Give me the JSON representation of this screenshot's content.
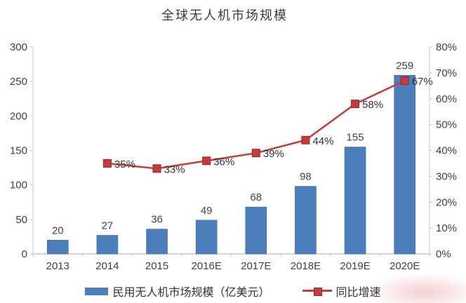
{
  "title": "全球无人机市场规模",
  "chart_data": {
    "type": "bar",
    "subtype": "combo-bar-line-dual-axis",
    "title": "全球无人机市场规模",
    "categories": [
      "2013",
      "2014",
      "2015",
      "2016E",
      "2017E",
      "2018E",
      "2019E",
      "2020E"
    ],
    "series": [
      {
        "name": "民用无人机市场规模（亿美元）",
        "type": "bar",
        "axis": "left",
        "color": "#4d7ebc",
        "values": [
          20,
          27,
          36,
          49,
          68,
          98,
          155,
          259
        ],
        "labels": [
          "20",
          "27",
          "36",
          "49",
          "68",
          "98",
          "155",
          "259"
        ]
      },
      {
        "name": "同比增速",
        "type": "line",
        "axis": "right",
        "color": "#c23b3d",
        "values": [
          null,
          35,
          33,
          36,
          39,
          44,
          58,
          67
        ],
        "labels": [
          "",
          "35%",
          "33%",
          "36%",
          "39%",
          "44%",
          "58%",
          "67%"
        ]
      }
    ],
    "left_axis": {
      "min": 0,
      "max": 300,
      "step": 50,
      "tick_labels": [
        "0",
        "50",
        "100",
        "150",
        "200",
        "250",
        "300"
      ]
    },
    "right_axis": {
      "min": 0,
      "max": 80,
      "step": 10,
      "tick_labels": [
        "0%",
        "10%",
        "20%",
        "30%",
        "40%",
        "50%",
        "60%",
        "70%",
        "80%"
      ]
    },
    "grid": false,
    "legend_position": "bottom"
  },
  "colors": {
    "bar": "#4d7ebc",
    "bar_edge": "#3c6aa5",
    "line": "#c23b3d",
    "marker_edge": "#8e2a2c",
    "axis": "#c6c6c6",
    "tick_text": "#404040",
    "label_text": "#333333"
  }
}
